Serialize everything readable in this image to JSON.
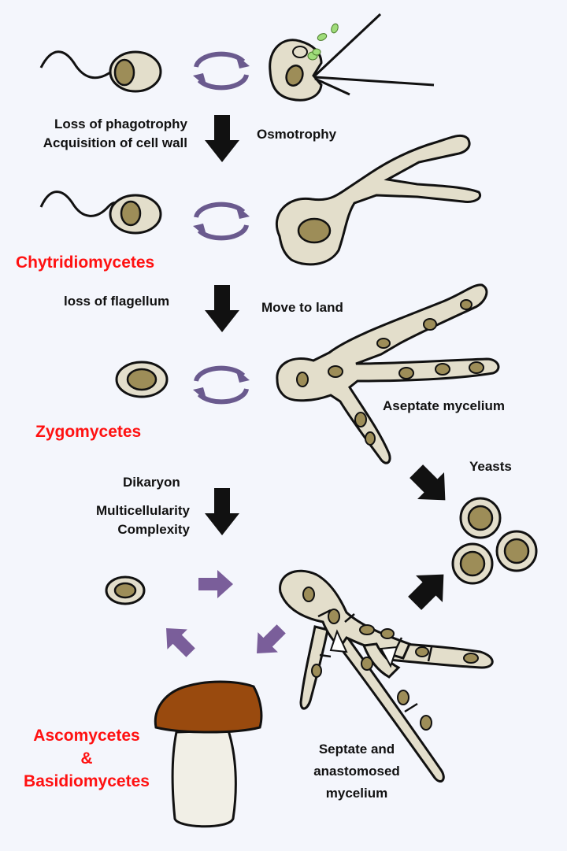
{
  "labels": {
    "loss_of_phagotrophy": "Loss of phagotrophy",
    "acquisition_of_cell_wall": "Acquisition of cell wall",
    "osmotrophy": "Osmotrophy",
    "chytridiomycetes": "Chytridiomycetes",
    "loss_of_flagellum": "loss of flagellum",
    "move_to_land": "Move to land",
    "aseptate_mycelium": "Aseptate mycelium",
    "zygomycetes": "Zygomycetes",
    "yeasts": "Yeasts",
    "dikaryon": "Dikaryon",
    "multicellularity": "Multicellularity",
    "complexity": "Complexity",
    "ascomycetes": "Ascomycetes",
    "ampersand": "&",
    "basidiomycetes": "Basidiomycetes",
    "septate_line1": "Septate and",
    "septate_line2": "anastomosed",
    "septate_line3": "mycelium"
  },
  "colors": {
    "background": "#f4f6fc",
    "cell_fill": "#e3decb",
    "nucleus": "#9d8d58",
    "outline": "#111111",
    "cycle_arrow": "#6a5a8e",
    "purple_arrow": "#7a5e9a",
    "spore_green": "#9fdc7a",
    "taxon_red": "#ff1111",
    "mushroom_cap": "#994a0e"
  }
}
